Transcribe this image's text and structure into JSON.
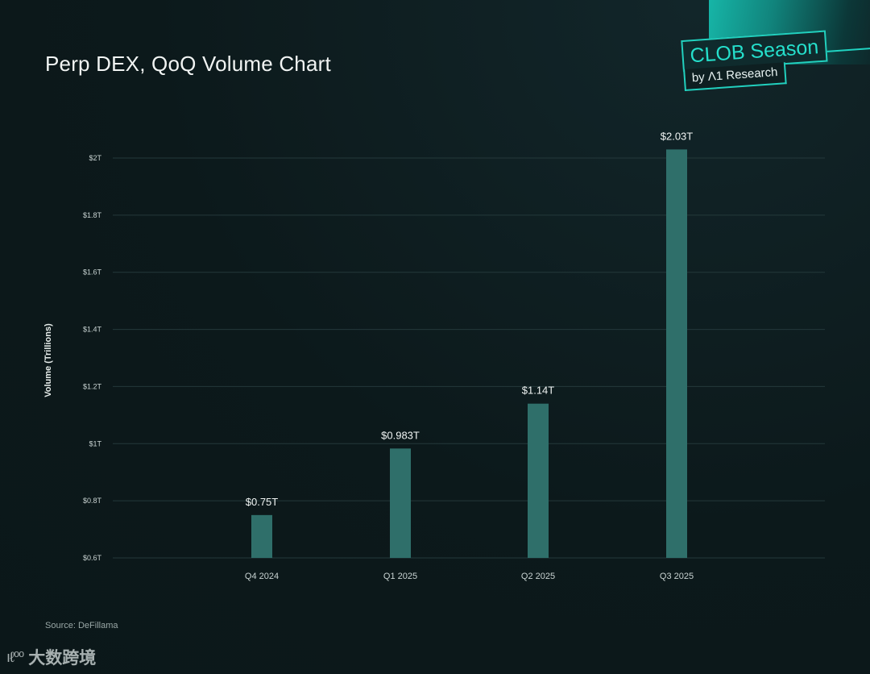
{
  "badge": {
    "main": "CLOB Season",
    "sub": "by Λ1 Research"
  },
  "source": "Source: DeFillama",
  "watermark": {
    "logo": "ıℓ⁰⁰",
    "text": "大数跨境"
  },
  "colors": {
    "background": "#0d1a1c",
    "bar": "#2f6f6a",
    "grid": "#24393b",
    "accent": "#22d0be"
  },
  "chart_data": {
    "type": "bar",
    "title": "Perp DEX, QoQ Volume Chart",
    "xlabel": "",
    "ylabel": "Volume (Trillions)",
    "categories": [
      "Q4 2024",
      "Q1 2025",
      "Q2 2025",
      "Q3 2025"
    ],
    "values": [
      0.75,
      0.983,
      1.14,
      2.03
    ],
    "data_labels": [
      "$0.75T",
      "$0.983T",
      "$1.14T",
      "$2.03T"
    ],
    "ylim": [
      0.6,
      2.0
    ],
    "yticks": [
      0.6,
      0.8,
      1.0,
      1.2,
      1.4,
      1.6,
      1.8,
      2.0
    ],
    "ytick_labels": [
      "$0.6T",
      "$0.8T",
      "$1T",
      "$1.2T",
      "$1.4T",
      "$1.6T",
      "$1.8T",
      "$2T"
    ],
    "grid": true,
    "legend": "none"
  }
}
